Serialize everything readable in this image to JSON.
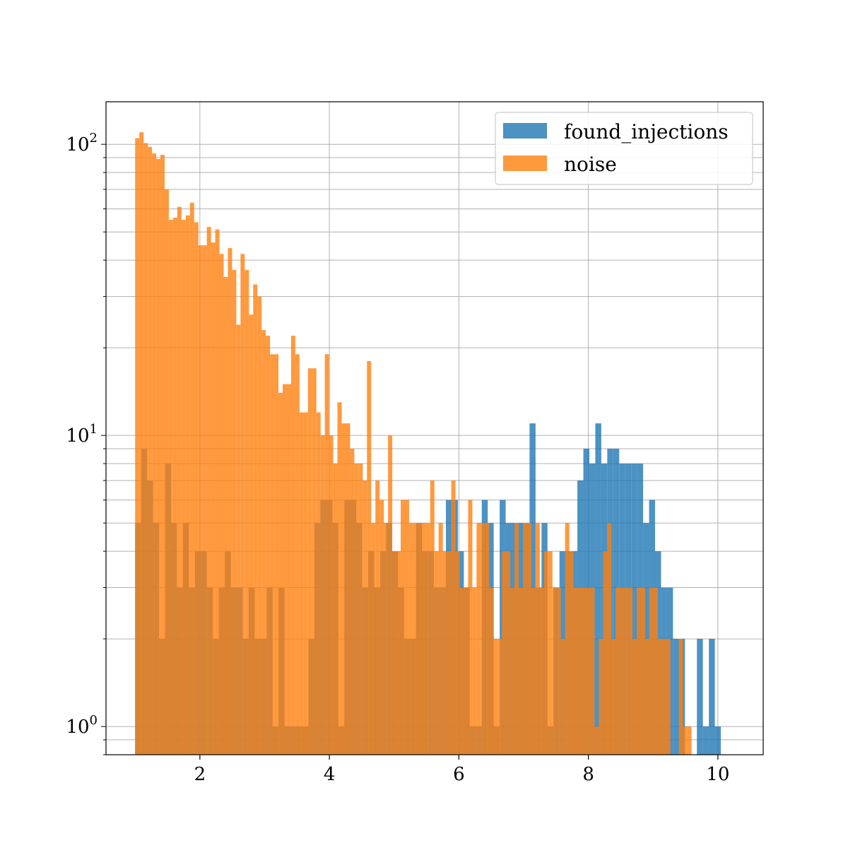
{
  "chart_data": {
    "type": "histogram",
    "yscale": "log",
    "grid": true,
    "legend_position": "top-right",
    "xlim": [
      0.55,
      10.7
    ],
    "ylim": [
      0.8,
      140
    ],
    "xticks": [
      2,
      4,
      6,
      8,
      10
    ],
    "xtick_labels": [
      "2",
      "4",
      "6",
      "8",
      "10"
    ],
    "yticks": [
      1,
      10,
      100
    ],
    "ytick_labels": [
      {
        "base": "10",
        "exp": "0"
      },
      {
        "base": "10",
        "exp": "1"
      },
      {
        "base": "10",
        "exp": "2"
      }
    ],
    "series": [
      {
        "name": "found_injections",
        "color": "#1f77b4",
        "opacity": 0.8,
        "bin_start": 1.0,
        "bin_width": 0.0923,
        "counts": [
          5,
          9,
          7,
          5,
          2,
          8,
          5,
          3,
          5,
          3,
          4,
          4,
          3,
          2,
          3,
          4,
          3,
          3,
          2,
          3,
          2,
          2,
          3,
          1,
          3,
          1,
          1,
          1,
          1,
          2,
          5,
          6,
          6,
          5,
          1,
          6,
          6,
          5,
          3,
          4,
          3,
          4,
          5,
          4,
          3,
          2,
          2,
          5,
          4,
          4,
          3,
          3,
          6,
          6,
          4,
          3,
          1,
          1,
          6,
          5,
          1,
          6,
          5,
          5,
          5,
          5,
          11,
          3,
          5,
          1,
          3,
          4,
          4,
          4,
          7,
          9,
          8,
          11,
          8,
          9,
          9,
          8,
          8,
          8,
          8,
          5,
          6,
          4,
          3,
          3,
          2,
          2,
          0,
          0,
          2,
          1,
          2,
          1,
          0
        ]
      },
      {
        "name": "noise",
        "color": "#ff7f0e",
        "opacity": 0.8,
        "bin_start": 1.0,
        "bin_width": 0.0651,
        "counts": [
          105,
          110,
          101,
          98,
          93,
          89,
          92,
          70,
          55,
          56,
          61,
          55,
          57,
          63,
          54,
          45,
          45,
          52,
          46,
          51,
          42,
          35,
          44,
          37,
          24,
          42,
          37,
          26,
          33,
          30,
          23,
          22,
          19,
          19,
          14,
          15,
          15,
          22,
          19,
          12,
          12,
          17,
          17,
          12,
          10,
          19,
          10,
          8,
          13,
          11,
          11,
          9,
          8,
          8,
          7,
          18,
          5,
          7,
          6,
          5,
          10,
          4,
          4,
          6,
          6,
          5,
          5,
          5,
          5,
          5,
          7,
          4,
          5,
          4,
          4,
          7,
          4,
          3,
          3,
          6,
          3,
          5,
          5,
          5,
          3,
          2,
          2,
          4,
          4,
          3,
          5,
          3,
          5,
          5,
          3,
          5,
          3,
          4,
          4,
          3,
          3,
          2,
          5,
          4,
          3,
          3,
          3,
          3,
          3,
          1,
          2,
          4,
          5,
          2,
          3,
          3,
          3,
          3,
          2,
          3,
          3,
          2,
          3,
          3,
          2,
          2,
          2,
          0,
          0,
          2,
          1,
          1
        ]
      }
    ]
  }
}
